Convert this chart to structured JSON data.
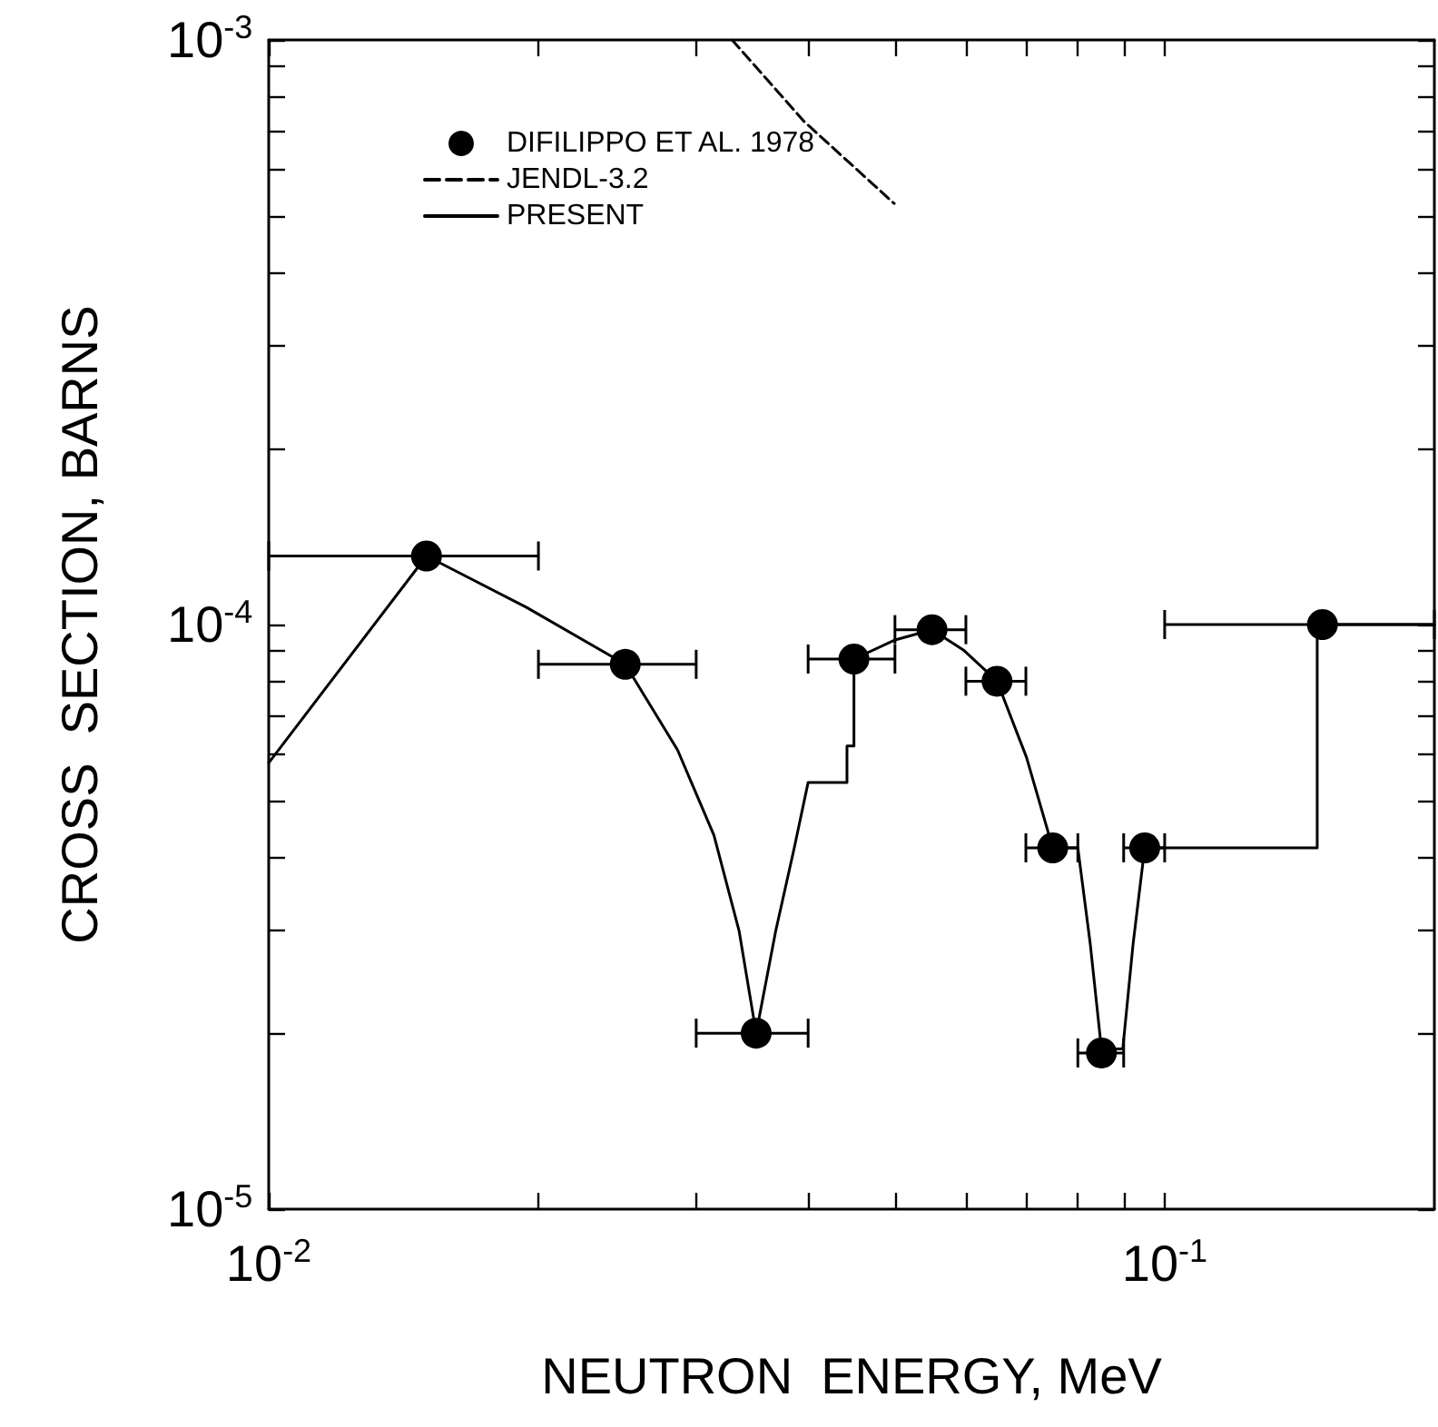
{
  "chart_data": {
    "type": "scatter",
    "xlabel": "NEUTRON  ENERGY, MeV",
    "ylabel": "CROSS  SECTION, BARNS",
    "log": "xy",
    "xlim": [
      0.01,
      0.2
    ],
    "ylim": [
      1e-05,
      0.001
    ],
    "xticks": [
      {
        "value": 0.01,
        "label": "10$^{-2}$"
      },
      {
        "value": 0.02,
        "label": null
      },
      {
        "value": 0.03,
        "label": null
      },
      {
        "value": 0.04,
        "label": null
      },
      {
        "value": 0.05,
        "label": null
      },
      {
        "value": 0.06,
        "label": null
      },
      {
        "value": 0.07,
        "label": null
      },
      {
        "value": 0.08,
        "label": null
      },
      {
        "value": 0.09,
        "label": null
      },
      {
        "value": 0.1,
        "label": "10$^{-1}$"
      }
    ],
    "yticks": [
      {
        "value": 1e-05,
        "label": "10$^{-5}$"
      },
      {
        "value": 2e-05,
        "label": null
      },
      {
        "value": 3e-05,
        "label": null
      },
      {
        "value": 4e-05,
        "label": null
      },
      {
        "value": 5e-05,
        "label": null
      },
      {
        "value": 6e-05,
        "label": null
      },
      {
        "value": 7e-05,
        "label": null
      },
      {
        "value": 8e-05,
        "label": null
      },
      {
        "value": 9e-05,
        "label": null
      },
      {
        "value": 0.0001,
        "label": "10$^{-4}$"
      },
      {
        "value": 0.0002,
        "label": null
      },
      {
        "value": 0.0003,
        "label": null
      },
      {
        "value": 0.0004,
        "label": null
      },
      {
        "value": 0.0005,
        "label": null
      },
      {
        "value": 0.0006,
        "label": null
      },
      {
        "value": 0.0007,
        "label": null
      },
      {
        "value": 0.0008,
        "label": null
      },
      {
        "value": 0.0009,
        "label": null
      },
      {
        "value": 0.001,
        "label": "10$^{-3}$"
      }
    ],
    "grid": false,
    "legend": "top left",
    "series": [
      {
        "name": "DIFILIPPO ET AL. 1978",
        "marker": "circle",
        "color": "#000000",
        "x": [
          0.015,
          0.025,
          0.035,
          0.045,
          0.055,
          0.065,
          0.075,
          0.085,
          0.095,
          0.15
        ],
        "values": [
          0.000131,
          8.55e-05,
          2e-05,
          8.73e-05,
          9.8e-05,
          8e-05,
          4.15e-05,
          1.85e-05,
          4.15e-05,
          0.0001
        ],
        "xerrors": [
          [
            0.01,
            0.02
          ],
          [
            0.02,
            0.03
          ],
          [
            0.03,
            0.04
          ],
          [
            0.04,
            0.05
          ],
          [
            0.05,
            0.06
          ],
          [
            0.06,
            0.07
          ],
          [
            0.07,
            0.08
          ],
          [
            0.08,
            0.09
          ],
          [
            0.09,
            0.1
          ],
          [
            0.1,
            0.2
          ]
        ]
      },
      {
        "name": "JENDL-3.2",
        "type": "line",
        "line_style": "dashed",
        "marker": "none",
        "color": "#000000",
        "x": [
          0.0329,
          0.0396,
          0.0499
        ],
        "values": [
          0.001,
          0.000725,
          0.000525
        ]
      },
      {
        "name": "PRESENT",
        "type": "line",
        "line_style": "solid",
        "marker": "none",
        "color": "#000000",
        "x": [
          0.01,
          0.015,
          0.0194,
          0.025,
          0.0286,
          0.0314,
          0.0335,
          0.035,
          0.0368,
          0.0386,
          0.04,
          0.0442,
          0.0442,
          0.045,
          0.045,
          0.0499,
          0.055,
          0.0596,
          0.065,
          0.0701,
          0.075,
          0.08,
          0.0826,
          0.085,
          0.0898,
          0.0922,
          0.095,
          0.148,
          0.148,
          0.2
        ],
        "values": [
          5.8e-05,
          0.000131,
          0.000107,
          8.55e-05,
          6.1e-05,
          4.36e-05,
          2.99e-05,
          2e-05,
          2.99e-05,
          4.15e-05,
          5.37e-05,
          5.37e-05,
          6.2e-05,
          6.2e-05,
          8.73e-05,
          9.4e-05,
          9.8e-05,
          9.05e-05,
          8e-05,
          5.93e-05,
          4.15e-05,
          4.15e-05,
          2.84e-05,
          1.88e-05,
          1.88e-05,
          2.84e-05,
          4.15e-05,
          4.15e-05,
          0.0001,
          0.0001
        ]
      }
    ]
  }
}
